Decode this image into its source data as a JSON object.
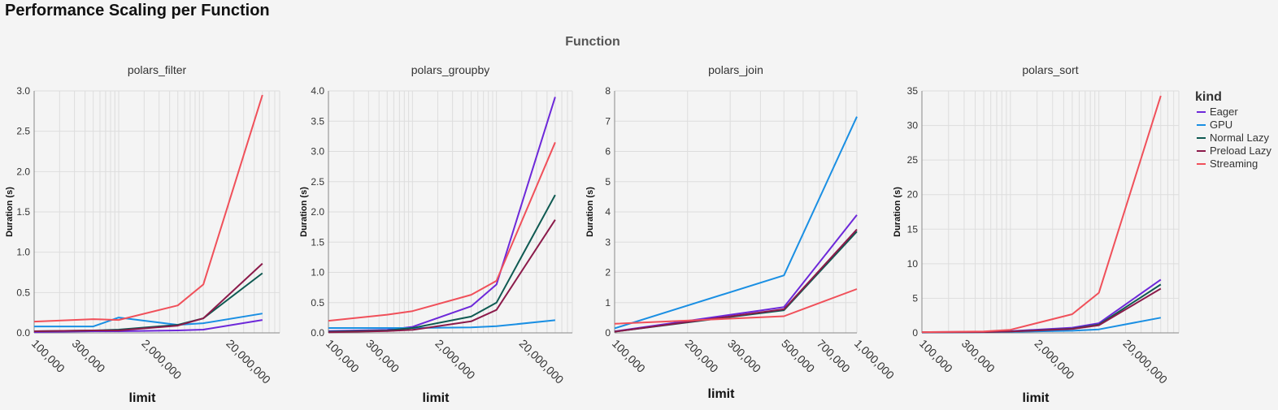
{
  "title": "Performance Scaling per Function",
  "facet_header": "Function",
  "legend": {
    "title": "kind",
    "placement": "right",
    "entries": [
      {
        "label": "Eager",
        "color": "#6d28d9"
      },
      {
        "label": "GPU",
        "color": "#1a8fe3"
      },
      {
        "label": "Normal Lazy",
        "color": "#0f5a52"
      },
      {
        "label": "Preload Lazy",
        "color": "#8b1a4a"
      },
      {
        "label": "Streaming",
        "color": "#f0505a"
      }
    ]
  },
  "chart_data": [
    {
      "type": "line",
      "title": "polars_filter",
      "xlabel": "limit",
      "ylabel": "Duration (s)",
      "xscale": "log",
      "xlim": [
        100000,
        80000000
      ],
      "ylim": [
        0,
        3.0
      ],
      "yticks": [
        0.0,
        0.5,
        1.0,
        1.5,
        2.0,
        2.5,
        3.0
      ],
      "ytick_labels": [
        "0.0",
        "0.5",
        "1.0",
        "1.5",
        "2.0",
        "2.5",
        "3.0"
      ],
      "xticks": [
        100000,
        300000,
        2000000,
        20000000
      ],
      "xtick_labels": [
        "100,000",
        "300,000",
        "2,000,000",
        "20,000,000"
      ],
      "grid": true,
      "x": [
        100000,
        500000,
        1000000,
        5000000,
        10000000,
        50000000
      ],
      "series": [
        {
          "name": "Eager",
          "values": [
            0.01,
            0.02,
            0.02,
            0.03,
            0.04,
            0.16
          ]
        },
        {
          "name": "GPU",
          "values": [
            0.08,
            0.08,
            0.19,
            0.1,
            0.12,
            0.24
          ]
        },
        {
          "name": "Normal Lazy",
          "values": [
            0.02,
            0.03,
            0.04,
            0.1,
            0.18,
            0.74
          ]
        },
        {
          "name": "Preload Lazy",
          "values": [
            0.02,
            0.03,
            0.03,
            0.09,
            0.18,
            0.86
          ]
        },
        {
          "name": "Streaming",
          "values": [
            0.14,
            0.17,
            0.16,
            0.34,
            0.6,
            2.95
          ]
        }
      ]
    },
    {
      "type": "line",
      "title": "polars_groupby",
      "xlabel": "limit",
      "ylabel": "Duration (s)",
      "xscale": "log",
      "xlim": [
        100000,
        80000000
      ],
      "ylim": [
        0,
        4.0
      ],
      "yticks": [
        0.0,
        0.5,
        1.0,
        1.5,
        2.0,
        2.5,
        3.0,
        3.5,
        4.0
      ],
      "ytick_labels": [
        "0.0",
        "0.5",
        "1.0",
        "1.5",
        "2.0",
        "2.5",
        "3.0",
        "3.5",
        "4.0"
      ],
      "xticks": [
        100000,
        300000,
        2000000,
        20000000
      ],
      "xtick_labels": [
        "100,000",
        "300,000",
        "2,000,000",
        "20,000,000"
      ],
      "grid": true,
      "x": [
        100000,
        500000,
        1000000,
        5000000,
        10000000,
        50000000
      ],
      "series": [
        {
          "name": "Eager",
          "values": [
            0.03,
            0.05,
            0.1,
            0.44,
            0.8,
            3.9
          ]
        },
        {
          "name": "GPU",
          "values": [
            0.08,
            0.08,
            0.08,
            0.09,
            0.11,
            0.21
          ]
        },
        {
          "name": "Normal Lazy",
          "values": [
            0.02,
            0.04,
            0.08,
            0.27,
            0.5,
            2.28
          ]
        },
        {
          "name": "Preload Lazy",
          "values": [
            0.01,
            0.03,
            0.05,
            0.19,
            0.38,
            1.87
          ]
        },
        {
          "name": "Streaming",
          "values": [
            0.2,
            0.3,
            0.36,
            0.63,
            0.86,
            3.15
          ]
        }
      ]
    },
    {
      "type": "line",
      "title": "polars_join",
      "xlabel": "limit",
      "ylabel": "Duration (s)",
      "xscale": "log",
      "xlim": [
        100000,
        1000000
      ],
      "ylim": [
        0,
        8
      ],
      "yticks": [
        0,
        1,
        2,
        3,
        4,
        5,
        6,
        7,
        8
      ],
      "ytick_labels": [
        "0",
        "1",
        "2",
        "3",
        "4",
        "5",
        "6",
        "7",
        "8"
      ],
      "xticks": [
        100000,
        200000,
        300000,
        500000,
        700000,
        1000000
      ],
      "xtick_labels": [
        "100,000",
        "200,000",
        "300,000",
        "500,000",
        "700,000",
        "1,000,000"
      ],
      "grid": true,
      "x": [
        100000,
        500000,
        1000000
      ],
      "series": [
        {
          "name": "Eager",
          "values": [
            0.05,
            0.85,
            3.9
          ]
        },
        {
          "name": "GPU",
          "values": [
            0.15,
            1.9,
            7.15
          ]
        },
        {
          "name": "Normal Lazy",
          "values": [
            0.04,
            0.75,
            3.35
          ]
        },
        {
          "name": "Preload Lazy",
          "values": [
            0.04,
            0.78,
            3.42
          ]
        },
        {
          "name": "Streaming",
          "values": [
            0.3,
            0.55,
            1.45
          ]
        }
      ]
    },
    {
      "type": "line",
      "title": "polars_sort",
      "xlabel": "limit",
      "ylabel": "Duration (s)",
      "xscale": "log",
      "xlim": [
        100000,
        80000000
      ],
      "ylim": [
        0,
        35
      ],
      "yticks": [
        0,
        5,
        10,
        15,
        20,
        25,
        30,
        35
      ],
      "ytick_labels": [
        "0",
        "5",
        "10",
        "15",
        "20",
        "25",
        "30",
        "35"
      ],
      "xticks": [
        100000,
        300000,
        2000000,
        20000000
      ],
      "xtick_labels": [
        "100,000",
        "300,000",
        "2,000,000",
        "20,000,000"
      ],
      "grid": true,
      "x": [
        100000,
        500000,
        1000000,
        5000000,
        10000000,
        50000000
      ],
      "series": [
        {
          "name": "Eager",
          "values": [
            0.1,
            0.15,
            0.25,
            0.75,
            1.4,
            7.7
          ]
        },
        {
          "name": "GPU",
          "values": [
            0.05,
            0.1,
            0.15,
            0.3,
            0.5,
            2.2
          ]
        },
        {
          "name": "Normal Lazy",
          "values": [
            0.08,
            0.12,
            0.2,
            0.6,
            1.2,
            7.0
          ]
        },
        {
          "name": "Preload Lazy",
          "values": [
            0.08,
            0.12,
            0.2,
            0.55,
            1.1,
            6.4
          ]
        },
        {
          "name": "Streaming",
          "values": [
            0.1,
            0.2,
            0.45,
            2.7,
            5.8,
            34.3
          ]
        }
      ]
    }
  ]
}
